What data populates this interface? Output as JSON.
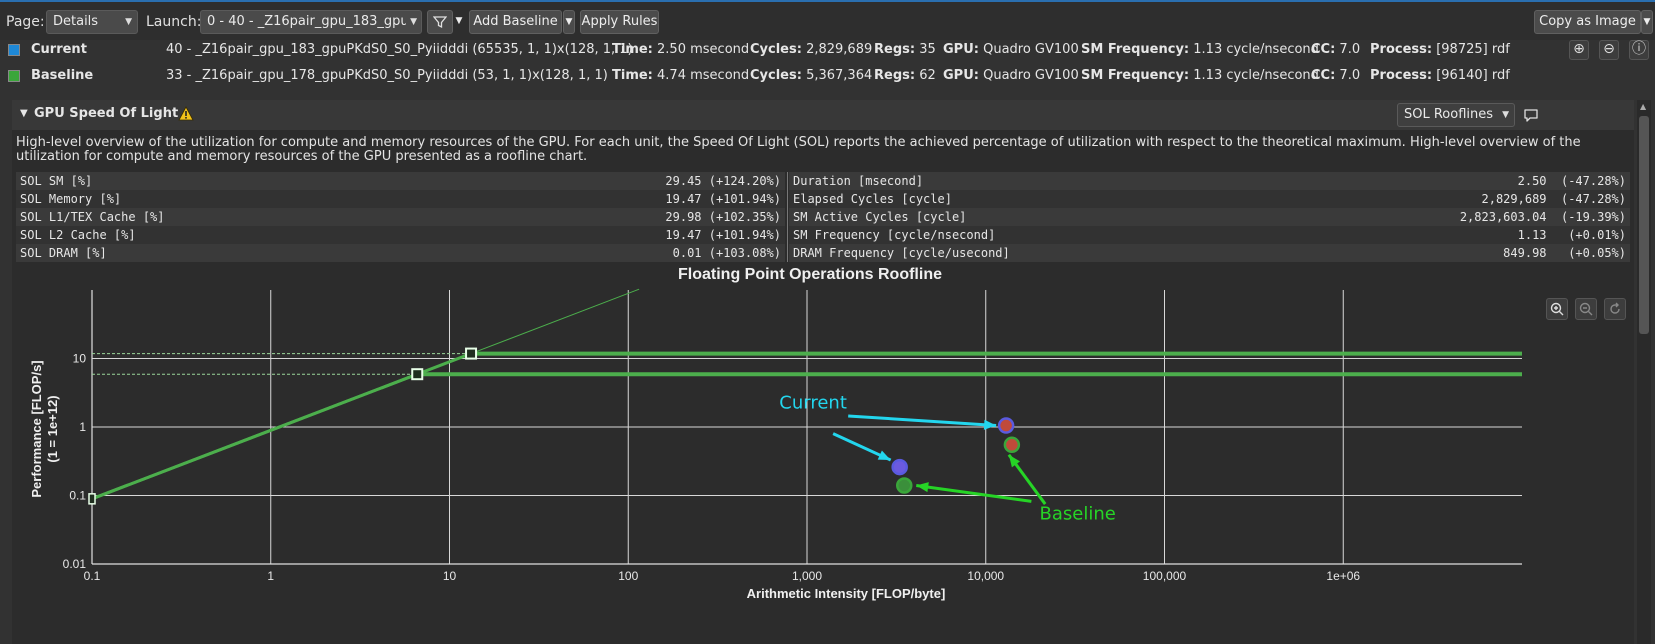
{
  "toolbar": {
    "page_label": "Page:",
    "page_value": "Details",
    "launch_label": "Launch:",
    "launch_value": "0 -    40 - _Z16pair_gpu_183_gpu",
    "add_baseline": "Add Baseline",
    "apply_rules": "Apply Rules",
    "copy_as_image": "Copy as Image"
  },
  "results": [
    {
      "name": "Current",
      "color": "#1e88d6",
      "kernel": "40 - _Z16pair_gpu_183_gpuPKdS0_S0_Pyiidddi (65535, 1, 1)x(128, 1, 1)",
      "time": "2.50 msecond",
      "cycles": "2,829,689",
      "regs": "35",
      "gpu": "Quadro GV100",
      "sm_freq": "1.13 cycle/nsecond",
      "cc": "7.0",
      "process": "[98725] rdf"
    },
    {
      "name": "Baseline",
      "color": "#3aa63a",
      "kernel": "33 - _Z16pair_gpu_178_gpuPKdS0_S0_Pyiidddi (53, 1, 1)x(128, 1, 1)",
      "time": "4.74 msecond",
      "cycles": "5,367,364",
      "regs": "62",
      "gpu": "Quadro GV100",
      "sm_freq": "1.13 cycle/nsecond",
      "cc": "7.0",
      "process": "[96140] rdf"
    }
  ],
  "field_labels": {
    "time": "Time:",
    "cycles": "Cycles:",
    "regs": "Regs:",
    "gpu": "GPU:",
    "sm_freq": "SM Frequency:",
    "cc": "CC:",
    "process": "Process:"
  },
  "section": {
    "title": "GPU Speed Of Light",
    "view_select": "SOL Rooflines",
    "description": "High-level overview of the utilization for compute and memory resources of the GPU. For each unit, the Speed Of Light (SOL) reports the achieved percentage of utilization with respect to the theoretical maximum. High-level overview of the utilization for compute and memory resources of the GPU presented as a roofline chart."
  },
  "metrics_left": [
    {
      "name": "SOL SM [%]",
      "value": "29.45 (+124.20%)"
    },
    {
      "name": "SOL Memory [%]",
      "value": "19.47 (+101.94%)"
    },
    {
      "name": "SOL L1/TEX Cache [%]",
      "value": "29.98 (+102.35%)"
    },
    {
      "name": "SOL L2 Cache [%]",
      "value": "19.47 (+101.94%)"
    },
    {
      "name": "SOL DRAM [%]",
      "value": "0.01 (+103.08%)"
    }
  ],
  "metrics_right": [
    {
      "name": "Duration [msecond]",
      "value": "2.50  (-47.28%)"
    },
    {
      "name": "Elapsed Cycles [cycle]",
      "value": "2,829,689  (-47.28%)"
    },
    {
      "name": "SM Active Cycles [cycle]",
      "value": "2,823,603.04  (-19.39%)"
    },
    {
      "name": "SM Frequency [cycle/nsecond]",
      "value": "1.13   (+0.01%)"
    },
    {
      "name": "DRAM Frequency [cycle/usecond]",
      "value": "849.98   (+0.05%)"
    }
  ],
  "chart_data": {
    "type": "scatter",
    "title": "Floating Point Operations Roofline",
    "xlabel": "Arithmetic Intensity [FLOP/byte]",
    "ylabel": "Performance [FLOP/s]",
    "ylabel2": "(1 = 1e+12)",
    "xscale": "log",
    "yscale": "log",
    "xlim": [
      0.1,
      10000000
    ],
    "ylim": [
      0.01,
      20
    ],
    "x_ticks": [
      "0.1",
      "1",
      "10",
      "100",
      "1,000",
      "10,000",
      "100,000",
      "1e+06"
    ],
    "x_tick_values": [
      0.1,
      1,
      10,
      100,
      1000,
      10000,
      100000,
      1000000
    ],
    "y_ticks": [
      "0.01",
      "0.1",
      "1",
      "10"
    ],
    "y_tick_values": [
      0.01,
      0.1,
      1,
      10
    ],
    "grid": true,
    "rooflines": [
      {
        "peak": 11.8,
        "ridge_x": 13.2
      },
      {
        "peak": 5.9,
        "ridge_x": 6.6
      }
    ],
    "series": [
      {
        "name": "Current",
        "color": "#5a5ae0",
        "points": [
          {
            "x": 13000,
            "y": 1.05
          },
          {
            "x": 3300,
            "y": 0.26
          }
        ]
      },
      {
        "name": "Baseline",
        "color": "#3aa63a",
        "points": [
          {
            "x": 14000,
            "y": 0.55
          },
          {
            "x": 3500,
            "y": 0.14
          }
        ]
      }
    ],
    "annotations": [
      {
        "text": "Current",
        "color": "#23d6ee"
      },
      {
        "text": "Baseline",
        "color": "#26d426"
      }
    ]
  }
}
